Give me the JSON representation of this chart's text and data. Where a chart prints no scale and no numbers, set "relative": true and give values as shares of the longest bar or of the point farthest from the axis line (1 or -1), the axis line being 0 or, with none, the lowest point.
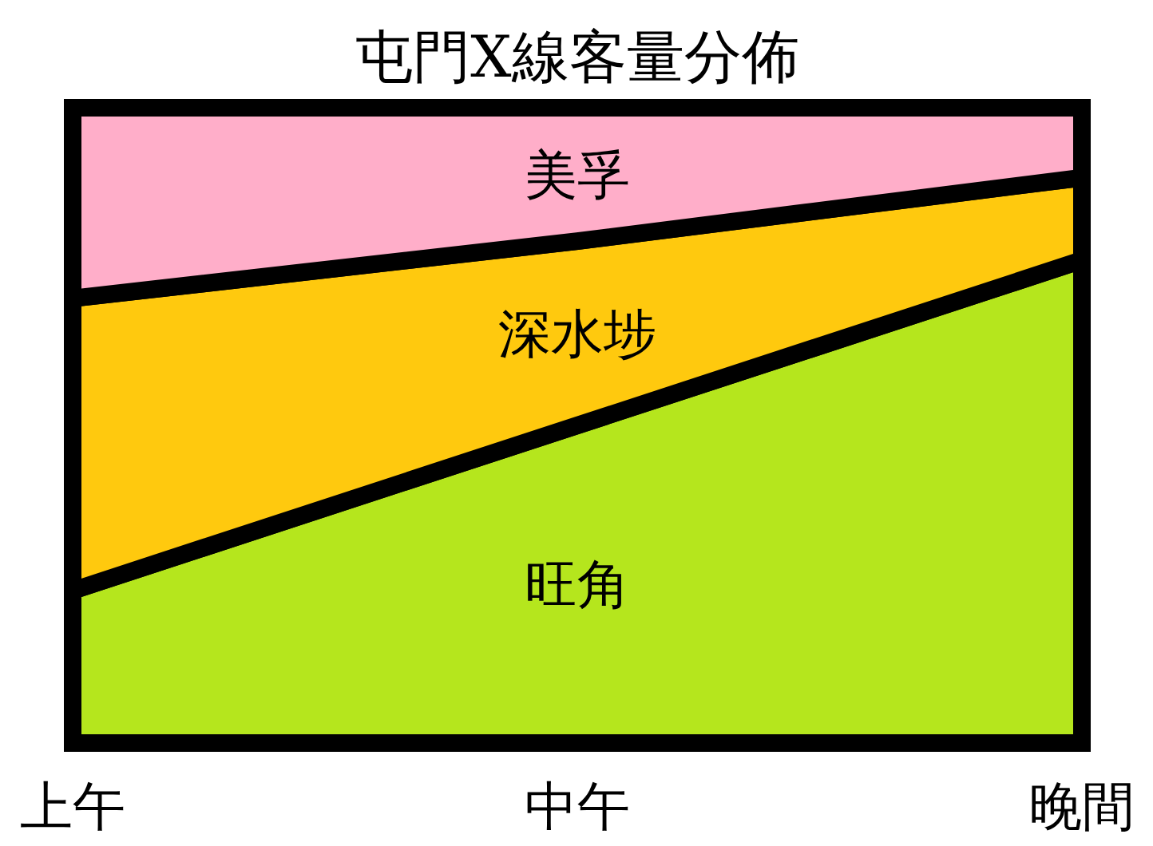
{
  "chart_data": {
    "type": "area",
    "title": "屯門X線客量分佈",
    "categories": [
      "上午",
      "中午",
      "晚間"
    ],
    "relative": true,
    "stacked": true,
    "series": [
      {
        "name": "旺角",
        "color": "#b5e61d",
        "values": [
          0.24,
          0.5,
          0.76
        ]
      },
      {
        "name": "深水埗",
        "color": "#ffc90e",
        "values": [
          0.46,
          0.29,
          0.13
        ]
      },
      {
        "name": "美孚",
        "color": "#ffaec9",
        "values": [
          0.3,
          0.21,
          0.11
        ]
      }
    ]
  }
}
